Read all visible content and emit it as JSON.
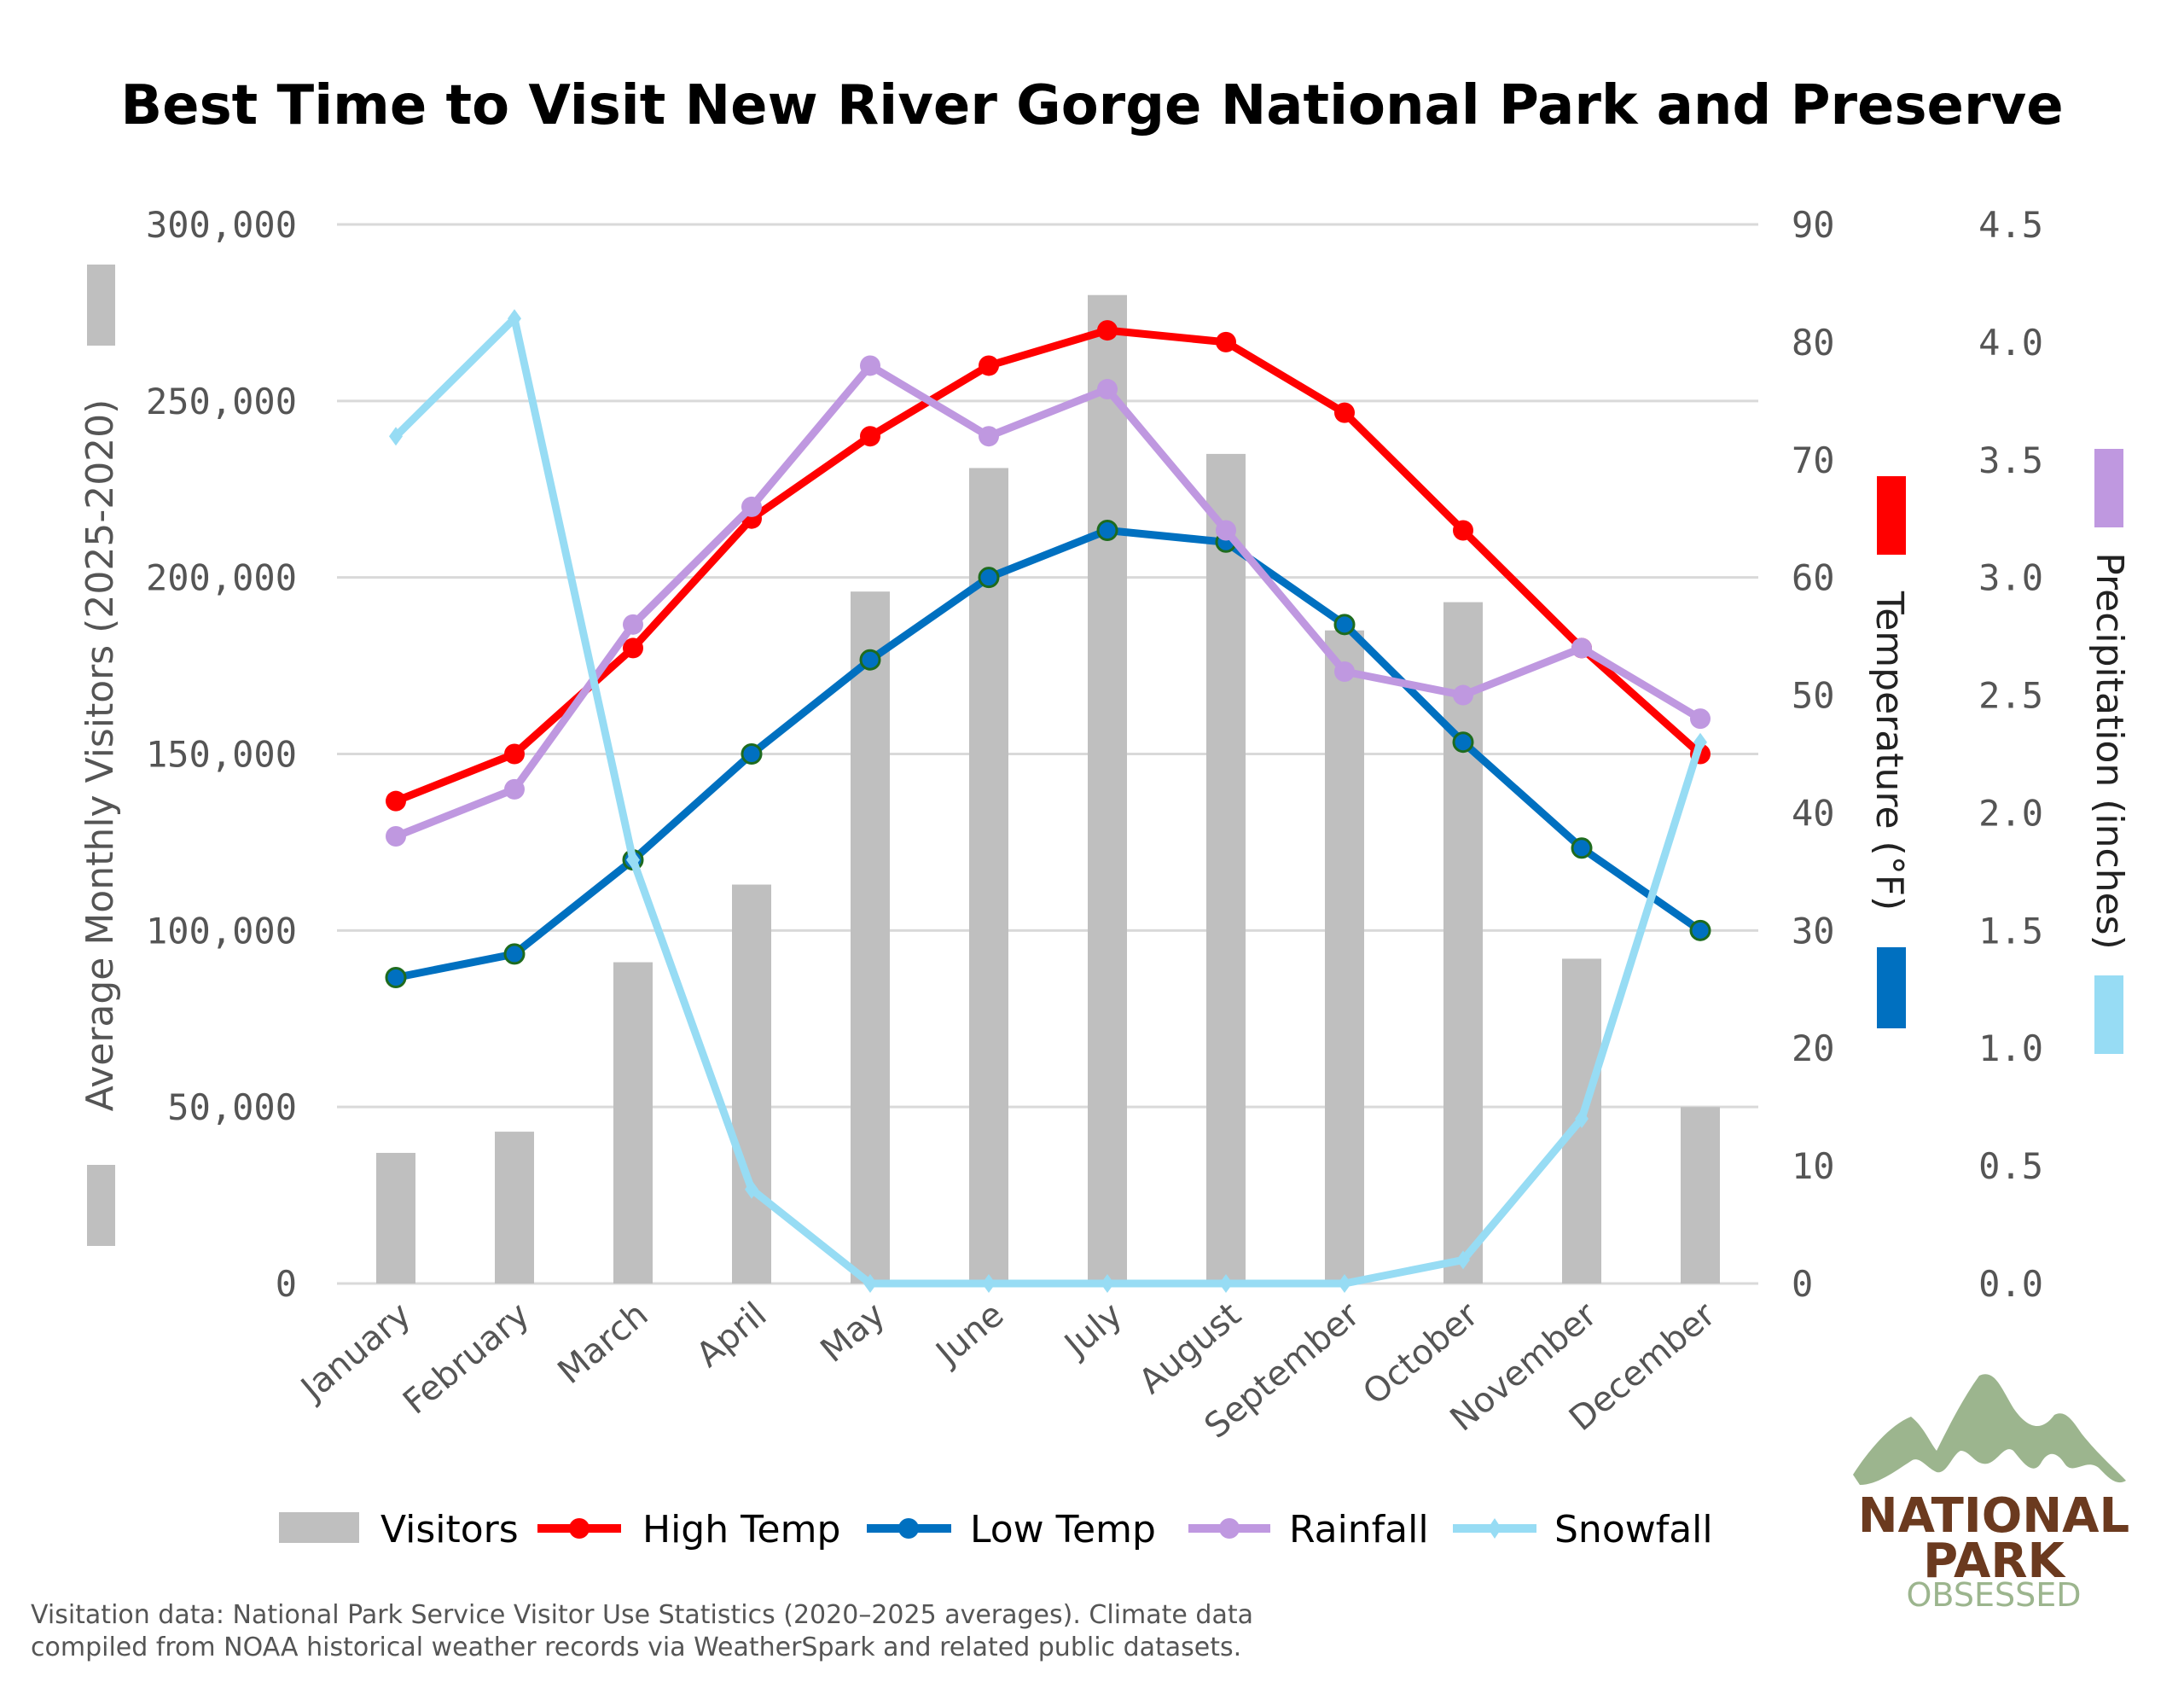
{
  "chart_data": {
    "type": "bar+line",
    "title": "Best Time to Visit New River Gorge National Park and Preserve",
    "categories": [
      "January",
      "February",
      "March",
      "April",
      "May",
      "June",
      "July",
      "August",
      "September",
      "October",
      "November",
      "December"
    ],
    "axes": {
      "left": {
        "label": "Average Monthly Visitors (2025-2020)",
        "ylim": [
          0,
          300000
        ],
        "ticks": [
          "0",
          "50,000",
          "100,000",
          "150,000",
          "200,000",
          "250,000",
          "300,000"
        ]
      },
      "temperature": {
        "label": "Temperature (°F)",
        "ylim": [
          0,
          90
        ],
        "ticks": [
          "0",
          "10",
          "20",
          "30",
          "40",
          "50",
          "60",
          "70",
          "80",
          "90"
        ]
      },
      "precipitation": {
        "label": "Precipitation (inches)",
        "ylim": [
          0,
          4.5
        ],
        "ticks": [
          "0.0",
          "0.5",
          "1.0",
          "1.5",
          "2.0",
          "2.5",
          "3.0",
          "3.5",
          "4.0",
          "4.5"
        ]
      }
    },
    "grid": true,
    "legend_position": "bottom",
    "series": [
      {
        "name": "Visitors",
        "type": "bar",
        "axis": "left",
        "color": "#bfbfbf",
        "values": [
          37000,
          43000,
          91000,
          113000,
          196000,
          231000,
          280000,
          235000,
          185000,
          193000,
          92000,
          50000
        ]
      },
      {
        "name": "High Temp",
        "type": "line",
        "axis": "temperature",
        "color": "#ff0000",
        "values": [
          41,
          45,
          54,
          65,
          72,
          78,
          81,
          80,
          74,
          64,
          54,
          45
        ]
      },
      {
        "name": "Low Temp",
        "type": "line",
        "axis": "temperature",
        "color": "#0070c0",
        "values": [
          26,
          28,
          36,
          45,
          53,
          60,
          64,
          63,
          56,
          46,
          37,
          30
        ]
      },
      {
        "name": "Rainfall",
        "type": "line",
        "axis": "precipitation",
        "color": "#bf98e0",
        "values": [
          1.9,
          2.1,
          2.8,
          3.3,
          3.9,
          3.6,
          3.8,
          3.2,
          2.6,
          2.5,
          2.7,
          2.4
        ]
      },
      {
        "name": "Snowfall",
        "type": "line",
        "axis": "precipitation",
        "color": "#97dcf4",
        "values": [
          3.6,
          4.1,
          1.8,
          0.4,
          0.0,
          0.0,
          0.0,
          0.0,
          0.0,
          0.1,
          0.7,
          2.3
        ]
      }
    ]
  },
  "footer": {
    "line1": "Visitation data: National Park Service Visitor Use Statistics (2020–2025 averages). Climate data",
    "line2": "compiled from NOAA historical weather records via WeatherSpark and related public datasets."
  },
  "logo": {
    "line1": "NATIONAL",
    "line2": "PARK",
    "line3": "OBSESSED"
  }
}
